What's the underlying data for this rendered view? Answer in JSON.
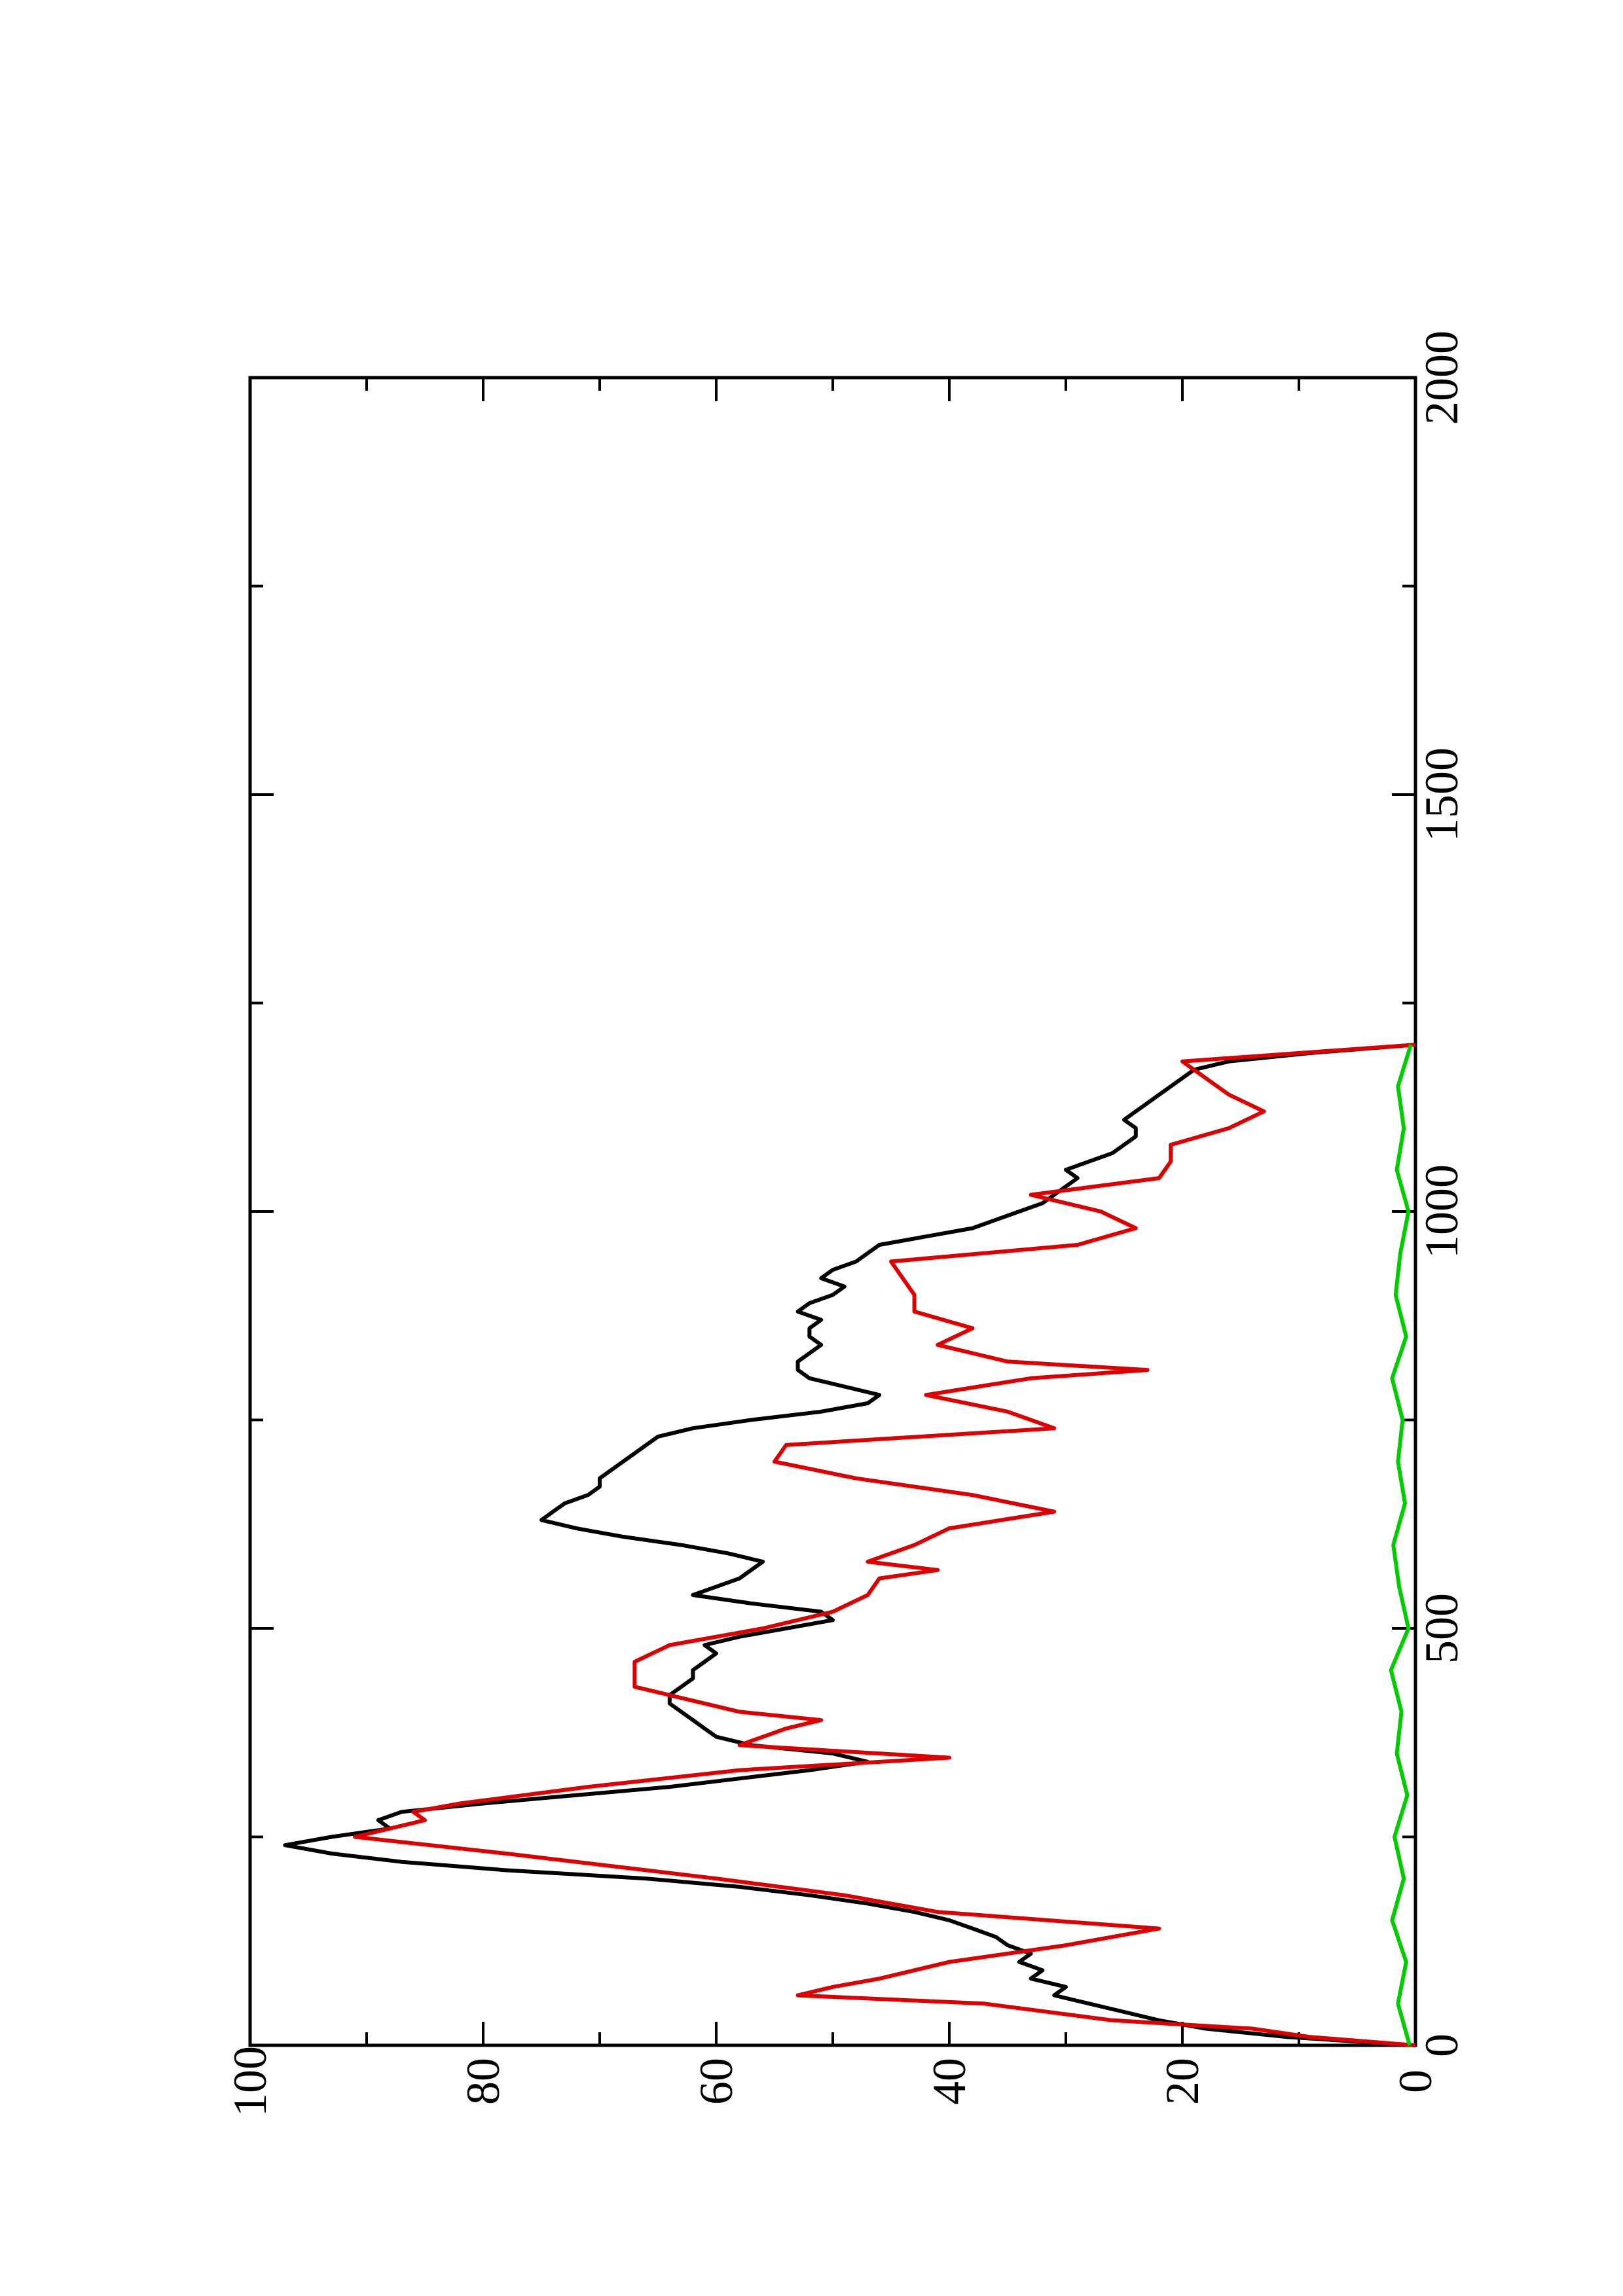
{
  "chart_data": {
    "type": "line",
    "orientation": "rotated-90",
    "title": "",
    "xlabel": "",
    "ylabel": "",
    "xlim": [
      0,
      2000
    ],
    "ylim": [
      0,
      100
    ],
    "x_ticks": [
      "0",
      "500",
      "1000",
      "1500",
      "2000"
    ],
    "y_ticks": [
      "0",
      "20",
      "40",
      "60",
      "80",
      "100"
    ],
    "grid": false,
    "legend": "none",
    "series": [
      {
        "color": "#000000",
        "x": [
          0,
          10,
          20,
          30,
          40,
          50,
          60,
          70,
          80,
          90,
          100,
          110,
          120,
          130,
          140,
          150,
          160,
          170,
          180,
          190,
          200,
          210,
          220,
          230,
          240,
          250,
          260,
          270,
          280,
          290,
          300,
          310,
          320,
          330,
          340,
          350,
          360,
          370,
          380,
          390,
          400,
          410,
          420,
          430,
          440,
          450,
          460,
          470,
          480,
          490,
          500,
          510,
          520,
          530,
          540,
          550,
          560,
          570,
          580,
          590,
          600,
          610,
          620,
          630,
          640,
          650,
          660,
          670,
          680,
          690,
          700,
          710,
          720,
          730,
          740,
          750,
          760,
          770,
          780,
          790,
          800,
          810,
          820,
          830,
          840,
          850,
          860,
          870,
          880,
          890,
          900,
          910,
          920,
          930,
          940,
          950,
          960,
          970,
          980,
          990,
          1000,
          1010,
          1020,
          1030,
          1040,
          1050,
          1060,
          1070,
          1080,
          1090,
          1100,
          1110,
          1120,
          1130,
          1140,
          1150,
          1160,
          1170,
          1180,
          1190,
          1200
        ],
        "y": [
          0,
          11,
          18,
          22,
          25,
          28,
          31,
          30,
          33,
          32,
          34,
          33,
          35,
          36,
          38,
          40,
          43,
          47,
          52,
          58,
          66,
          78,
          87,
          93,
          97,
          93,
          88,
          89,
          87,
          80,
          72,
          64,
          58,
          52,
          47,
          50,
          57,
          60,
          61,
          62,
          63,
          64,
          64,
          63,
          62,
          62,
          61,
          60,
          61,
          58,
          54,
          50,
          51,
          57,
          62,
          60,
          58,
          57,
          56,
          59,
          63,
          68,
          72,
          75,
          74,
          73,
          71,
          70,
          70,
          69,
          68,
          67,
          66,
          65,
          62,
          57,
          51,
          47,
          46,
          49,
          52,
          53,
          53,
          52,
          51,
          52,
          52,
          51,
          53,
          52,
          50,
          49,
          51,
          50,
          48,
          47,
          46,
          42,
          38,
          36,
          34,
          32,
          31,
          30,
          29,
          30,
          28,
          26,
          25,
          24,
          24,
          25,
          24,
          23,
          22,
          21,
          20,
          19,
          16,
          9,
          0
        ]
      },
      {
        "color": "#dd0000",
        "x": [
          0,
          10,
          20,
          30,
          50,
          60,
          70,
          80,
          100,
          120,
          140,
          160,
          180,
          200,
          230,
          250,
          270,
          280,
          290,
          310,
          330,
          345,
          360,
          380,
          390,
          400,
          420,
          430,
          460,
          480,
          500,
          520,
          540,
          560,
          570,
          580,
          600,
          620,
          640,
          660,
          680,
          700,
          720,
          740,
          760,
          780,
          800,
          810,
          820,
          840,
          860,
          880,
          900,
          920,
          940,
          960,
          980,
          1000,
          1020,
          1040,
          1060,
          1080,
          1100,
          1120,
          1140,
          1160,
          1180,
          1200
        ],
        "y": [
          0,
          9,
          14,
          26,
          37,
          53,
          50,
          46,
          40,
          30,
          22,
          41,
          49,
          60,
          78,
          91,
          85,
          86,
          82,
          71,
          58,
          40,
          58,
          54,
          51,
          58,
          64,
          67,
          67,
          64,
          56,
          50,
          47,
          46,
          41,
          47,
          43,
          40,
          31,
          38,
          48,
          55,
          54,
          31,
          35,
          42,
          33,
          23,
          35,
          41,
          38,
          43,
          43,
          44,
          45,
          29,
          24,
          27,
          33,
          22,
          21,
          21,
          16,
          13,
          16,
          18,
          20,
          0
        ]
      },
      {
        "color": "#00cc00",
        "x": [
          0,
          50,
          100,
          150,
          200,
          250,
          300,
          350,
          400,
          450,
          500,
          550,
          600,
          650,
          700,
          750,
          800,
          850,
          900,
          950,
          1000,
          1050,
          1100,
          1150,
          1200
        ],
        "y": [
          0.5,
          1.5,
          0.8,
          2.0,
          1.0,
          1.8,
          0.7,
          1.6,
          1.2,
          2.1,
          0.6,
          1.4,
          1.9,
          0.9,
          1.5,
          1.1,
          2.0,
          0.8,
          1.7,
          1.3,
          0.6,
          1.6,
          1.0,
          1.5,
          0.4
        ]
      }
    ]
  }
}
